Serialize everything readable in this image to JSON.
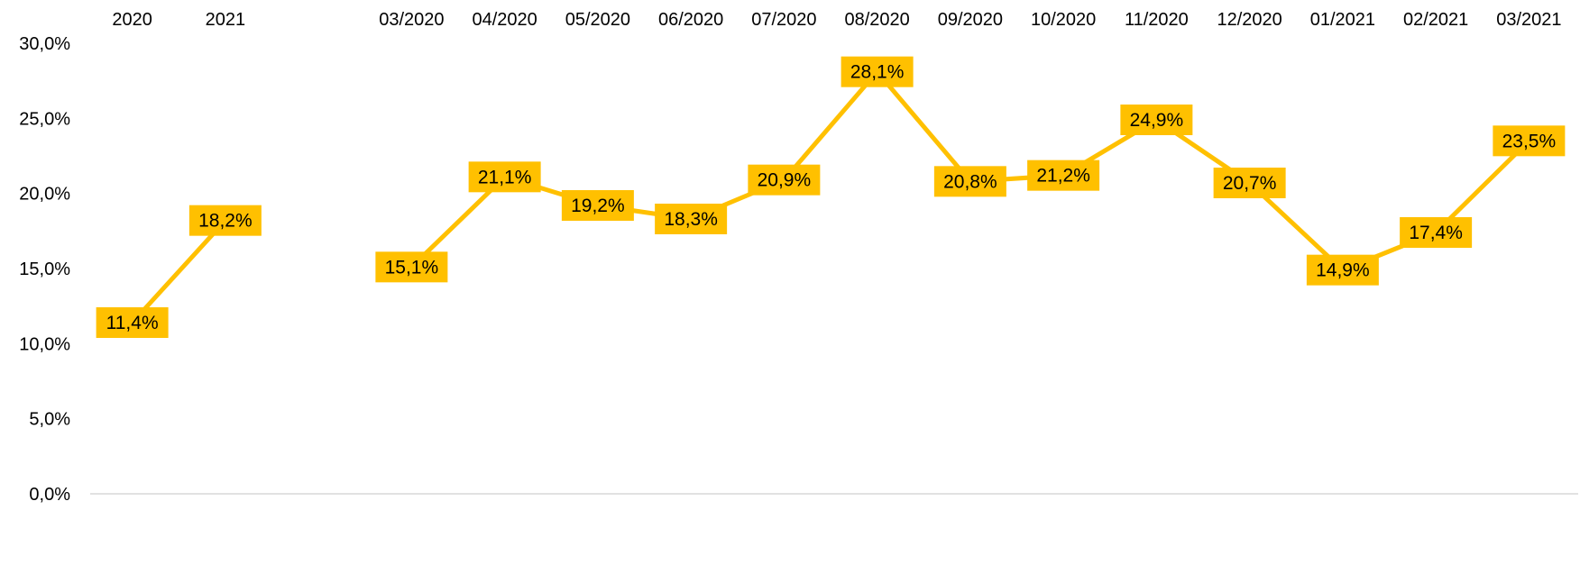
{
  "chart_data": {
    "type": "line",
    "title": "",
    "xlabel": "",
    "ylabel": "",
    "ylim": [
      0,
      30
    ],
    "y_ticks": [
      "0,0%",
      "5,0%",
      "10,0%",
      "15,0%",
      "20,0%",
      "25,0%",
      "30,0%"
    ],
    "grid": false,
    "x_axis_position": "top",
    "line_color": "#FFC000",
    "label_box_color": "#FFC000",
    "categories": [
      "2020",
      "2021",
      "",
      "03/2020",
      "04/2020",
      "05/2020",
      "06/2020",
      "07/2020",
      "08/2020",
      "09/2020",
      "10/2020",
      "11/2020",
      "12/2020",
      "01/2021",
      "02/2021",
      "03/2021"
    ],
    "series": [
      {
        "values": [
          11.4,
          18.2,
          null,
          15.1,
          21.1,
          19.2,
          18.3,
          20.9,
          28.1,
          20.8,
          21.2,
          24.9,
          20.7,
          14.9,
          17.4,
          23.5
        ],
        "labels": [
          "11,4%",
          "18,2%",
          "",
          "15,1%",
          "21,1%",
          "19,2%",
          "18,3%",
          "20,9%",
          "28,1%",
          "20,8%",
          "21,2%",
          "24,9%",
          "20,7%",
          "14,9%",
          "17,4%",
          "23,5%"
        ]
      }
    ]
  }
}
